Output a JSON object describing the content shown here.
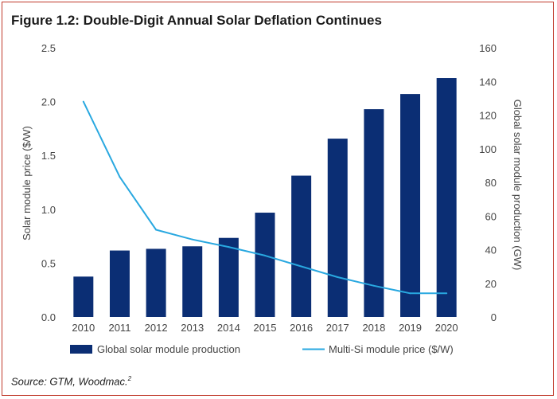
{
  "figure": {
    "title": "Figure 1.2: Double-Digit Annual Solar Deflation Continues",
    "source_text": "Source: GTM, Woodmac.",
    "source_note": "2"
  },
  "colors": {
    "bar": "#0b2e74",
    "line": "#29a8e0",
    "frame": "#c0392b"
  },
  "chart_data": {
    "type": "bar",
    "title": "Figure 1.2: Double-Digit Annual Solar Deflation Continues",
    "categories": [
      "2010",
      "2011",
      "2012",
      "2013",
      "2014",
      "2015",
      "2016",
      "2017",
      "2018",
      "2019",
      "2020"
    ],
    "ylabel_left": "Solar module price ($/W)",
    "ylabel_right": "Global solar module production (GW)",
    "ylim_left": [
      0,
      2.5
    ],
    "ylim_right": [
      0,
      160
    ],
    "yticks_left": [
      "0.0",
      "0.5",
      "1.0",
      "1.5",
      "2.0",
      "2.5"
    ],
    "yticks_right": [
      "0",
      "20",
      "40",
      "60",
      "80",
      "100",
      "120",
      "140",
      "160"
    ],
    "grid": false,
    "legend_position": "bottom",
    "series": [
      {
        "name": "Global solar module production",
        "type": "bar",
        "axis": "right",
        "values": [
          24,
          39.5,
          40.5,
          42,
          47,
          62,
          84,
          106,
          123.5,
          132.5,
          142
        ]
      },
      {
        "name": "Multi-Si module price ($/W)",
        "type": "line",
        "axis": "left",
        "values": [
          2.0,
          1.3,
          0.81,
          0.72,
          0.65,
          0.57,
          0.47,
          0.37,
          0.29,
          0.22,
          0.22
        ]
      }
    ]
  }
}
